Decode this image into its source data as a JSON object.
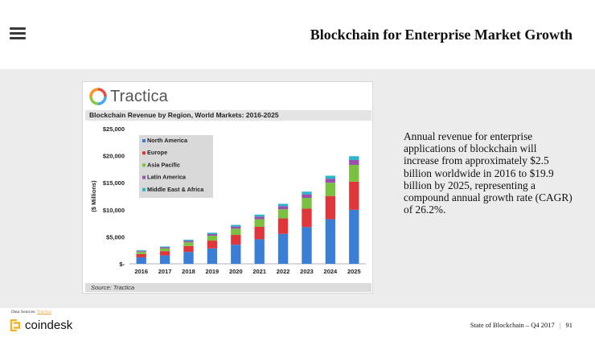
{
  "header": {
    "title": "Blockchain for Enterprise Market Growth",
    "menu_icon": "hamburger-menu-icon"
  },
  "chart_card": {
    "logo_text": "Tractica",
    "logo_colors": [
      "#e74c3c",
      "#3fa9f5",
      "#8dc63f",
      "#f7941d"
    ],
    "source": "Source: Tractica"
  },
  "chart_data": {
    "type": "bar",
    "stacked": true,
    "title": "Blockchain Revenue by Region, World Markets: 2016-2025",
    "xlabel": "",
    "ylabel": "($ Millions)",
    "ylim": [
      0,
      25000
    ],
    "yticks": [
      0,
      5000,
      10000,
      15000,
      20000,
      25000
    ],
    "ytick_labels": [
      "$-",
      "$5,000",
      "$10,000",
      "$15,000",
      "$20,000",
      "$25,000"
    ],
    "categories": [
      "2016",
      "2017",
      "2018",
      "2019",
      "2020",
      "2021",
      "2022",
      "2023",
      "2024",
      "2025"
    ],
    "legend_position": "top-left",
    "series": [
      {
        "name": "North America",
        "color": "#3a7fd5",
        "values": [
          1200,
          1550,
          2200,
          2850,
          3550,
          4550,
          5550,
          6800,
          8250,
          10000
        ]
      },
      {
        "name": "Europe",
        "color": "#e0353b",
        "values": [
          600,
          800,
          1100,
          1450,
          1800,
          2300,
          2850,
          3400,
          4300,
          5200
        ]
      },
      {
        "name": "Asia Pacific",
        "color": "#7ac142",
        "values": [
          400,
          500,
          700,
          900,
          1150,
          1400,
          1700,
          2000,
          2450,
          3100
        ]
      },
      {
        "name": "Latin America",
        "color": "#9b4fb0",
        "values": [
          150,
          200,
          250,
          300,
          400,
          480,
          560,
          650,
          750,
          900
        ]
      },
      {
        "name": "Middle East & Africa",
        "color": "#2bb5c8",
        "values": [
          150,
          150,
          200,
          250,
          300,
          370,
          440,
          500,
          550,
          700
        ]
      }
    ]
  },
  "summary_text": "Annual revenue for enterprise applications of blockchain will increase from approximately $2.5 billion worldwide in 2016 to $19.9 billion by 2025, representing a compound annual growth rate (CAGR) of 26.2%.",
  "footer": {
    "data_sources_label": "Data Sources:",
    "data_sources_link": "Tractica",
    "brand": "coindesk",
    "report": "State of Blockchain – Q4 2017",
    "separator": "|",
    "page_number": "91",
    "brand_color": "#f4b325"
  }
}
